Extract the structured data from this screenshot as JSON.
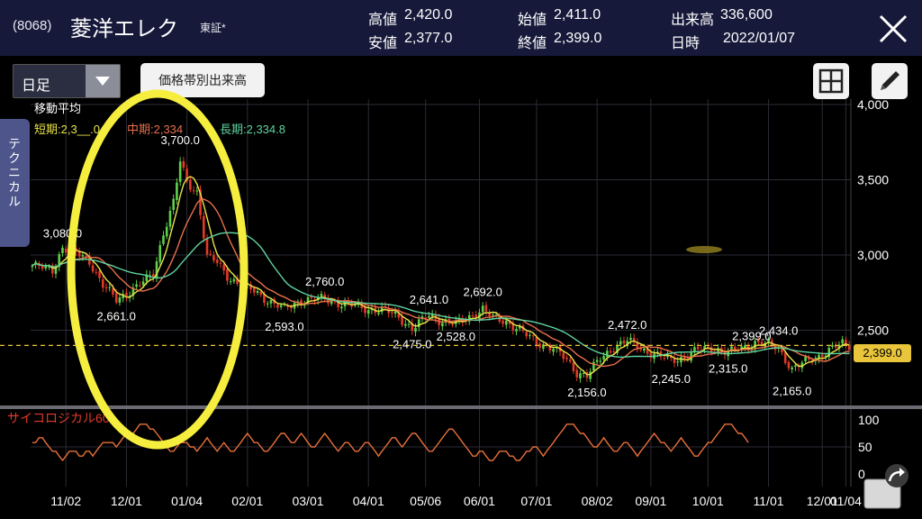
{
  "header": {
    "code": "(8068)",
    "name": "菱洋エレク",
    "market": "東証*",
    "quotes": [
      {
        "label": "高値",
        "value": "2,420.0"
      },
      {
        "label": "安値",
        "value": "2,377.0"
      },
      {
        "label": "始値",
        "value": "2,411.0"
      },
      {
        "label": "終値",
        "value": "2,399.0"
      },
      {
        "label": "出来高",
        "value": "336,600"
      },
      {
        "label": "日時",
        "value": "2022/01/07"
      }
    ]
  },
  "toolbar": {
    "period_select": "日足",
    "volume_by_price_button": "価格帯別出来高"
  },
  "side_tab": "テクニカル",
  "legend": {
    "title": "移動平均",
    "short": "短期:2,3__.0",
    "mid": "中期:2,334",
    "long": "長期:2,334.8"
  },
  "current_price": "2,399.0",
  "oscillator_label": "サイコロジカル60",
  "colors": {
    "up": "#5fcf4a",
    "down": "#e23a2a",
    "short_ma": "#e9e34a",
    "mid_ma": "#e8704a",
    "long_ma": "#5ed3a0",
    "psycho": "#e8703a",
    "annotation": "#ffff44",
    "header_bg": "#16193a"
  },
  "chart_data": {
    "type": "candlestick",
    "price_axis": {
      "ticks": [
        "4,000",
        "3,500",
        "3,000",
        "2,500"
      ],
      "range": [
        2000,
        4000
      ]
    },
    "oscillator_axis": {
      "ticks": [
        "100",
        "50",
        "0"
      ],
      "range": [
        0,
        100
      ]
    },
    "x_ticks": [
      "11/02",
      "12/01",
      "01/04",
      "02/01",
      "03/01",
      "04/01",
      "05/06",
      "06/01",
      "07/01",
      "08/02",
      "09/01",
      "10/01",
      "11/01",
      "12/01",
      "01/04"
    ],
    "annotations": [
      {
        "label": "3,080.0",
        "value": 3080,
        "i": 9
      },
      {
        "label": "2,661.0",
        "value": 2661,
        "i": 25
      },
      {
        "label": "3,700.0",
        "value": 3700,
        "i": 44
      },
      {
        "label": "2,760.0",
        "value": 2760,
        "i": 87
      },
      {
        "label": "2,593.0",
        "value": 2593,
        "i": 75
      },
      {
        "label": "2,641.0",
        "value": 2641,
        "i": 118
      },
      {
        "label": "2,475.0",
        "value": 2475,
        "i": 113
      },
      {
        "label": "2,528.0",
        "value": 2528,
        "i": 126
      },
      {
        "label": "2,692.0",
        "value": 2692,
        "i": 134
      },
      {
        "label": "2,156.0",
        "value": 2156,
        "i": 165
      },
      {
        "label": "2,472.0",
        "value": 2472,
        "i": 177
      },
      {
        "label": "2,245.0",
        "value": 2245,
        "i": 190
      },
      {
        "label": "2,399.0",
        "value": 2399,
        "i": 214
      },
      {
        "label": "2,434.0",
        "value": 2434,
        "i": 222
      },
      {
        "label": "2,315.0",
        "value": 2315,
        "i": 207
      },
      {
        "label": "2,165.0",
        "value": 2165,
        "i": 226
      }
    ],
    "close_keypoints": [
      [
        0,
        2930
      ],
      [
        6,
        2900
      ],
      [
        9,
        3050
      ],
      [
        14,
        3000
      ],
      [
        17,
        2960
      ],
      [
        21,
        2800
      ],
      [
        25,
        2700
      ],
      [
        29,
        2760
      ],
      [
        33,
        2820
      ],
      [
        36,
        2870
      ],
      [
        39,
        3150
      ],
      [
        42,
        3350
      ],
      [
        44,
        3620
      ],
      [
        46,
        3480
      ],
      [
        49,
        3420
      ],
      [
        50,
        3280
      ],
      [
        52,
        2990
      ],
      [
        55,
        2950
      ],
      [
        58,
        2860
      ],
      [
        62,
        2800
      ],
      [
        66,
        2760
      ],
      [
        70,
        2700
      ],
      [
        75,
        2640
      ],
      [
        80,
        2700
      ],
      [
        87,
        2710
      ],
      [
        91,
        2680
      ],
      [
        96,
        2660
      ],
      [
        100,
        2640
      ],
      [
        105,
        2630
      ],
      [
        109,
        2590
      ],
      [
        113,
        2510
      ],
      [
        118,
        2600
      ],
      [
        122,
        2560
      ],
      [
        126,
        2540
      ],
      [
        130,
        2590
      ],
      [
        134,
        2640
      ],
      [
        137,
        2580
      ],
      [
        141,
        2560
      ],
      [
        145,
        2500
      ],
      [
        150,
        2420
      ],
      [
        155,
        2380
      ],
      [
        159,
        2300
      ],
      [
        162,
        2220
      ],
      [
        165,
        2200
      ],
      [
        169,
        2310
      ],
      [
        173,
        2390
      ],
      [
        177,
        2430
      ],
      [
        181,
        2380
      ],
      [
        185,
        2340
      ],
      [
        190,
        2300
      ],
      [
        194,
        2320
      ],
      [
        198,
        2370
      ],
      [
        203,
        2380
      ],
      [
        207,
        2350
      ],
      [
        211,
        2380
      ],
      [
        215,
        2420
      ],
      [
        219,
        2400
      ],
      [
        222,
        2380
      ],
      [
        226,
        2240
      ],
      [
        230,
        2290
      ],
      [
        234,
        2330
      ],
      [
        238,
        2380
      ],
      [
        241,
        2410
      ],
      [
        243,
        2399
      ]
    ],
    "psychological": [
      58,
      58,
      67,
      67,
      58,
      50,
      42,
      42,
      33,
      25,
      33,
      42,
      42,
      42,
      33,
      33,
      42,
      42,
      33,
      42,
      50,
      58,
      58,
      58,
      58,
      50,
      58,
      67,
      75,
      75,
      75,
      83,
      92,
      92,
      92,
      83,
      83,
      75,
      67,
      58,
      50,
      42,
      42,
      50,
      58,
      58,
      58,
      50,
      50,
      42,
      50,
      58,
      67,
      58,
      50,
      42,
      50,
      58,
      50,
      42,
      42,
      50,
      58,
      67,
      75,
      67,
      58,
      58,
      50,
      42,
      42,
      50,
      58,
      67,
      75,
      75,
      67,
      58,
      58,
      67,
      75,
      67,
      58,
      50,
      50,
      58,
      67,
      75,
      67,
      58,
      50,
      42,
      50,
      58,
      58,
      50,
      42,
      42,
      50,
      58,
      58,
      50,
      42,
      33,
      42,
      50,
      58,
      67,
      67,
      58,
      50,
      58,
      67,
      75,
      75,
      67,
      58,
      50,
      42,
      42,
      50,
      58,
      67,
      75,
      83,
      83,
      75,
      67,
      58,
      50,
      42,
      33,
      33,
      42,
      42,
      33,
      25,
      25,
      33,
      42,
      42,
      42,
      33,
      33,
      25,
      25,
      33,
      42,
      42,
      50,
      50,
      42,
      33,
      42,
      50,
      58,
      67,
      75,
      83,
      92,
      92,
      92,
      83,
      75,
      75,
      67,
      58,
      50,
      50,
      58,
      67,
      58,
      50,
      42,
      42,
      50,
      58,
      58,
      50,
      42,
      33,
      42,
      50,
      58,
      67,
      75,
      67,
      58,
      58,
      50,
      42,
      50,
      58,
      67,
      58,
      50,
      42,
      33,
      33,
      42,
      50,
      58,
      58,
      67,
      75,
      83,
      92,
      92,
      92,
      83,
      75,
      75,
      67,
      58
    ]
  }
}
